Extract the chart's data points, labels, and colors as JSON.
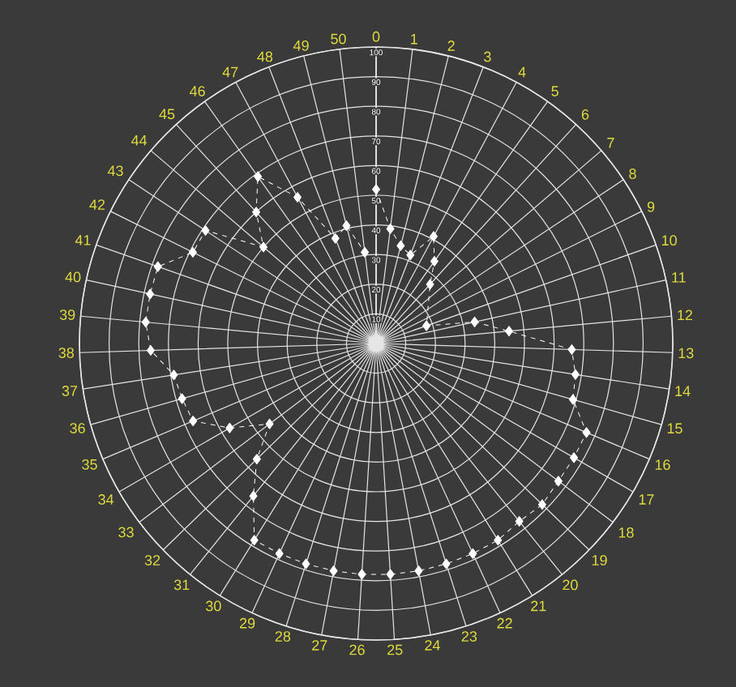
{
  "chart_data": {
    "type": "radar",
    "categories": [
      "0",
      "1",
      "2",
      "3",
      "4",
      "5",
      "6",
      "7",
      "8",
      "9",
      "10",
      "11",
      "12",
      "13",
      "14",
      "15",
      "16",
      "17",
      "18",
      "19",
      "20",
      "21",
      "22",
      "23",
      "24",
      "25",
      "26",
      "27",
      "28",
      "29",
      "30",
      "31",
      "32",
      "33",
      "34",
      "35",
      "36",
      "37",
      "38",
      "39",
      "40",
      "41",
      "42",
      "43",
      "44",
      "45",
      "46",
      "47",
      "48",
      "49",
      "50"
    ],
    "series": [
      {
        "color": "#ffffff",
        "values": [
          52,
          39,
          34,
          32,
          41,
          34,
          27,
          null,
          null,
          null,
          18,
          34,
          45,
          66,
          68,
          69,
          77,
          77,
          77,
          78,
          77,
          78,
          78,
          78,
          78,
          78,
          78,
          78,
          78,
          78,
          78,
          66,
          56,
          45,
          57,
          67,
          68,
          69,
          76,
          78,
          78,
          78,
          69,
          69,
          50,
          60,
          69,
          56,
          38,
          41,
          31
        ]
      }
    ],
    "ylim": [
      0,
      100
    ],
    "yticks": [
      10,
      20,
      30,
      40,
      50,
      60,
      70,
      80,
      90,
      100
    ],
    "grid": true,
    "marker": "diamond",
    "line_style": "dashed"
  }
}
